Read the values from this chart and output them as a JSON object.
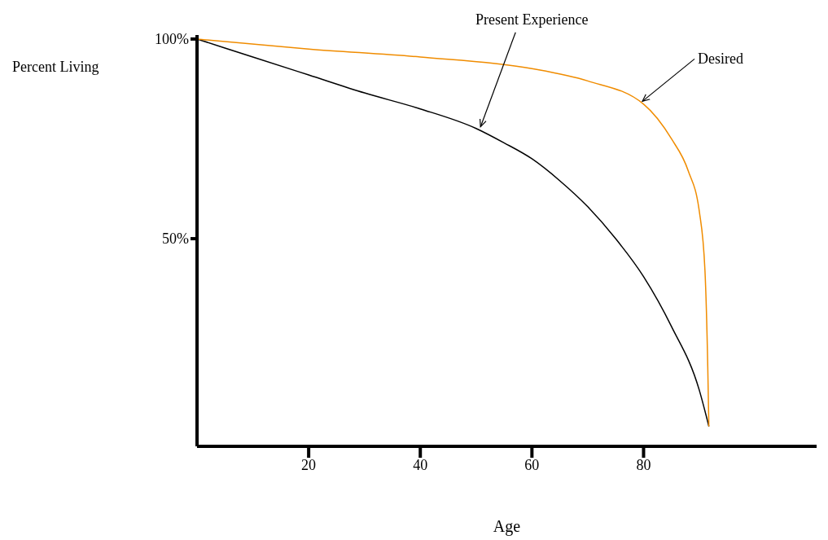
{
  "chart_data": {
    "type": "line",
    "xlabel": "Age",
    "ylabel": "Percent Living",
    "xlim": [
      0,
      111
    ],
    "ylim": [
      -2,
      101
    ],
    "xticks": [
      20,
      40,
      60,
      80
    ],
    "yticks": [
      {
        "value": 50,
        "label": "50%"
      },
      {
        "value": 100,
        "label": "100%"
      }
    ],
    "marker": "none",
    "line_style": "solid",
    "series": [
      {
        "color": "#000000",
        "x": [
          0,
          10,
          20,
          30,
          40,
          50,
          55,
          60,
          65,
          70,
          75,
          80,
          85,
          90,
          91.7
        ],
        "values": [
          100,
          95.5,
          91,
          86.5,
          82.5,
          77.6,
          74,
          70,
          64.5,
          58,
          50,
          40.5,
          28,
          12,
          3
        ]
      },
      {
        "color": "#f08c00",
        "x": [
          0,
          20,
          40,
          60,
          70,
          80,
          85,
          88,
          90,
          91,
          91.5,
          91.7
        ],
        "values": [
          100,
          97.5,
          95.5,
          92.6,
          89.5,
          83.7,
          75,
          67,
          56.7,
          42,
          18,
          3
        ]
      }
    ],
    "annotations": [
      {
        "text": "Present Experience",
        "x": 50.5,
        "y": 77.6
      },
      {
        "text": "Desired",
        "x": 79.5,
        "y": 84
      }
    ]
  }
}
